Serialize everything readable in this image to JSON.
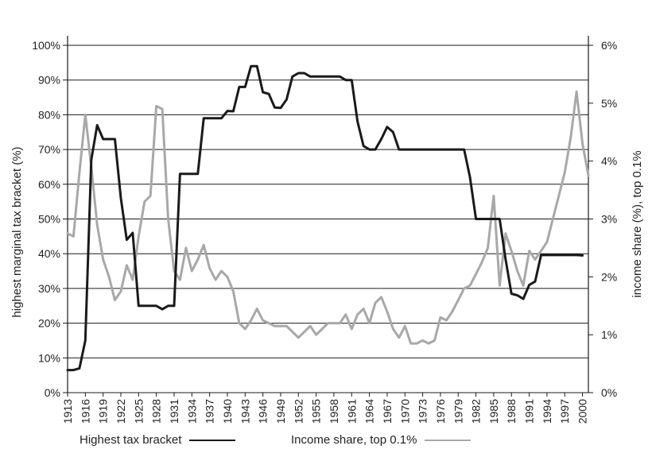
{
  "chart_data": {
    "type": "line",
    "xlabel": "",
    "ylabel_left": "highest marginal tax bracket (%)",
    "ylabel_right": "income share (%), top 0.1%",
    "xlim": [
      1913,
      2001
    ],
    "ylim_left": [
      0,
      100
    ],
    "ylim_right": [
      0,
      6
    ],
    "grid": "horizontal",
    "legend_position": "bottom",
    "x_ticks": [
      "1913",
      "1916",
      "1919",
      "1922",
      "1925",
      "1928",
      "1931",
      "1934",
      "1937",
      "1940",
      "1943",
      "1946",
      "1949",
      "1952",
      "1955",
      "1958",
      "1961",
      "1964",
      "1967",
      "1970",
      "1973",
      "1976",
      "1979",
      "1982",
      "1985",
      "1988",
      "1991",
      "1994",
      "1997",
      "2000"
    ],
    "y_ticks_left": [
      "0%",
      "10%",
      "20%",
      "30%",
      "40%",
      "50%",
      "60%",
      "70%",
      "80%",
      "90%",
      "100%"
    ],
    "y_ticks_right": [
      "0%",
      "1%",
      "2%",
      "3%",
      "4%",
      "5%",
      "6%"
    ],
    "series": [
      {
        "name": "Highest tax bracket",
        "axis": "left",
        "color": "#1a1a1a",
        "points": [
          [
            1913,
            6.5
          ],
          [
            1914,
            6.5
          ],
          [
            1915,
            7
          ],
          [
            1916,
            15
          ],
          [
            1917,
            67
          ],
          [
            1918,
            77
          ],
          [
            1919,
            73
          ],
          [
            1920,
            73
          ],
          [
            1921,
            73
          ],
          [
            1922,
            56
          ],
          [
            1923,
            44
          ],
          [
            1924,
            46
          ],
          [
            1925,
            25
          ],
          [
            1926,
            25
          ],
          [
            1927,
            25
          ],
          [
            1928,
            25
          ],
          [
            1929,
            24
          ],
          [
            1930,
            25
          ],
          [
            1931,
            25
          ],
          [
            1932,
            63
          ],
          [
            1933,
            63
          ],
          [
            1934,
            63
          ],
          [
            1935,
            63
          ],
          [
            1936,
            79
          ],
          [
            1937,
            79
          ],
          [
            1938,
            79
          ],
          [
            1939,
            79
          ],
          [
            1940,
            81.1
          ],
          [
            1941,
            81
          ],
          [
            1942,
            88
          ],
          [
            1943,
            88
          ],
          [
            1944,
            94
          ],
          [
            1945,
            94
          ],
          [
            1946,
            86.5
          ],
          [
            1947,
            86
          ],
          [
            1948,
            82.1
          ],
          [
            1949,
            82
          ],
          [
            1950,
            84.4
          ],
          [
            1951,
            91
          ],
          [
            1952,
            92
          ],
          [
            1953,
            92
          ],
          [
            1954,
            91
          ],
          [
            1955,
            91
          ],
          [
            1956,
            91
          ],
          [
            1957,
            91
          ],
          [
            1958,
            91
          ],
          [
            1959,
            91
          ],
          [
            1960,
            90
          ],
          [
            1961,
            90
          ],
          [
            1962,
            78
          ],
          [
            1963,
            71
          ],
          [
            1964,
            70
          ],
          [
            1965,
            70
          ],
          [
            1966,
            73
          ],
          [
            1967,
            76.5
          ],
          [
            1968,
            75
          ],
          [
            1969,
            70
          ],
          [
            1970,
            70
          ],
          [
            1971,
            70
          ],
          [
            1972,
            70
          ],
          [
            1973,
            70
          ],
          [
            1974,
            70
          ],
          [
            1975,
            70
          ],
          [
            1976,
            70
          ],
          [
            1977,
            70
          ],
          [
            1978,
            70
          ],
          [
            1979,
            70
          ],
          [
            1980,
            70
          ],
          [
            1981,
            62
          ],
          [
            1982,
            50
          ],
          [
            1983,
            50
          ],
          [
            1984,
            50
          ],
          [
            1985,
            50
          ],
          [
            1986,
            50
          ],
          [
            1987,
            38.5
          ],
          [
            1988,
            28.5
          ],
          [
            1989,
            28
          ],
          [
            1990,
            27
          ],
          [
            1991,
            31
          ],
          [
            1992,
            32
          ],
          [
            1993,
            39.6
          ],
          [
            1994,
            39.6
          ],
          [
            1995,
            39.6
          ],
          [
            1996,
            39.6
          ],
          [
            1997,
            39.6
          ],
          [
            1998,
            39.6
          ],
          [
            1999,
            39.6
          ],
          [
            2000,
            39.5
          ]
        ]
      },
      {
        "name": "Income share, top 0.1%",
        "axis": "right",
        "color": "#a8a8a8",
        "points": [
          [
            1913,
            2.75
          ],
          [
            1914,
            2.7
          ],
          [
            1915,
            3.8
          ],
          [
            1916,
            4.8
          ],
          [
            1917,
            3.9
          ],
          [
            1918,
            2.9
          ],
          [
            1919,
            2.3
          ],
          [
            1920,
            2.0
          ],
          [
            1921,
            1.6
          ],
          [
            1922,
            1.75
          ],
          [
            1923,
            2.2
          ],
          [
            1924,
            1.95
          ],
          [
            1925,
            2.7
          ],
          [
            1926,
            3.3
          ],
          [
            1927,
            3.4
          ],
          [
            1928,
            4.95
          ],
          [
            1929,
            4.9
          ],
          [
            1930,
            3.0
          ],
          [
            1931,
            2.1
          ],
          [
            1932,
            1.95
          ],
          [
            1933,
            2.5
          ],
          [
            1934,
            2.1
          ],
          [
            1935,
            2.3
          ],
          [
            1936,
            2.55
          ],
          [
            1937,
            2.15
          ],
          [
            1938,
            1.95
          ],
          [
            1939,
            2.1
          ],
          [
            1940,
            2.0
          ],
          [
            1941,
            1.75
          ],
          [
            1942,
            1.2
          ],
          [
            1943,
            1.1
          ],
          [
            1944,
            1.25
          ],
          [
            1945,
            1.45
          ],
          [
            1946,
            1.25
          ],
          [
            1947,
            1.2
          ],
          [
            1948,
            1.15
          ],
          [
            1949,
            1.15
          ],
          [
            1950,
            1.15
          ],
          [
            1951,
            1.05
          ],
          [
            1952,
            0.95
          ],
          [
            1953,
            1.05
          ],
          [
            1954,
            1.15
          ],
          [
            1955,
            1.0
          ],
          [
            1956,
            1.1
          ],
          [
            1957,
            1.2
          ],
          [
            1958,
            1.2
          ],
          [
            1959,
            1.2
          ],
          [
            1960,
            1.35
          ],
          [
            1961,
            1.1
          ],
          [
            1962,
            1.35
          ],
          [
            1963,
            1.45
          ],
          [
            1964,
            1.2
          ],
          [
            1965,
            1.55
          ],
          [
            1966,
            1.65
          ],
          [
            1967,
            1.4
          ],
          [
            1968,
            1.1
          ],
          [
            1969,
            0.95
          ],
          [
            1970,
            1.15
          ],
          [
            1971,
            0.85
          ],
          [
            1972,
            0.85
          ],
          [
            1973,
            0.9
          ],
          [
            1974,
            0.85
          ],
          [
            1975,
            0.9
          ],
          [
            1976,
            1.3
          ],
          [
            1977,
            1.25
          ],
          [
            1978,
            1.4
          ],
          [
            1979,
            1.6
          ],
          [
            1980,
            1.8
          ],
          [
            1981,
            1.85
          ],
          [
            1982,
            2.05
          ],
          [
            1983,
            2.25
          ],
          [
            1984,
            2.5
          ],
          [
            1985,
            3.4
          ],
          [
            1986,
            1.85
          ],
          [
            1987,
            2.75
          ],
          [
            1988,
            2.45
          ],
          [
            1989,
            2.1
          ],
          [
            1990,
            1.85
          ],
          [
            1991,
            2.45
          ],
          [
            1992,
            2.3
          ],
          [
            1993,
            2.45
          ],
          [
            1994,
            2.6
          ],
          [
            1995,
            3.0
          ],
          [
            1996,
            3.4
          ],
          [
            1997,
            3.8
          ],
          [
            1998,
            4.4
          ],
          [
            1999,
            5.2
          ],
          [
            2000,
            4.3
          ],
          [
            2001,
            3.75
          ]
        ]
      }
    ]
  }
}
